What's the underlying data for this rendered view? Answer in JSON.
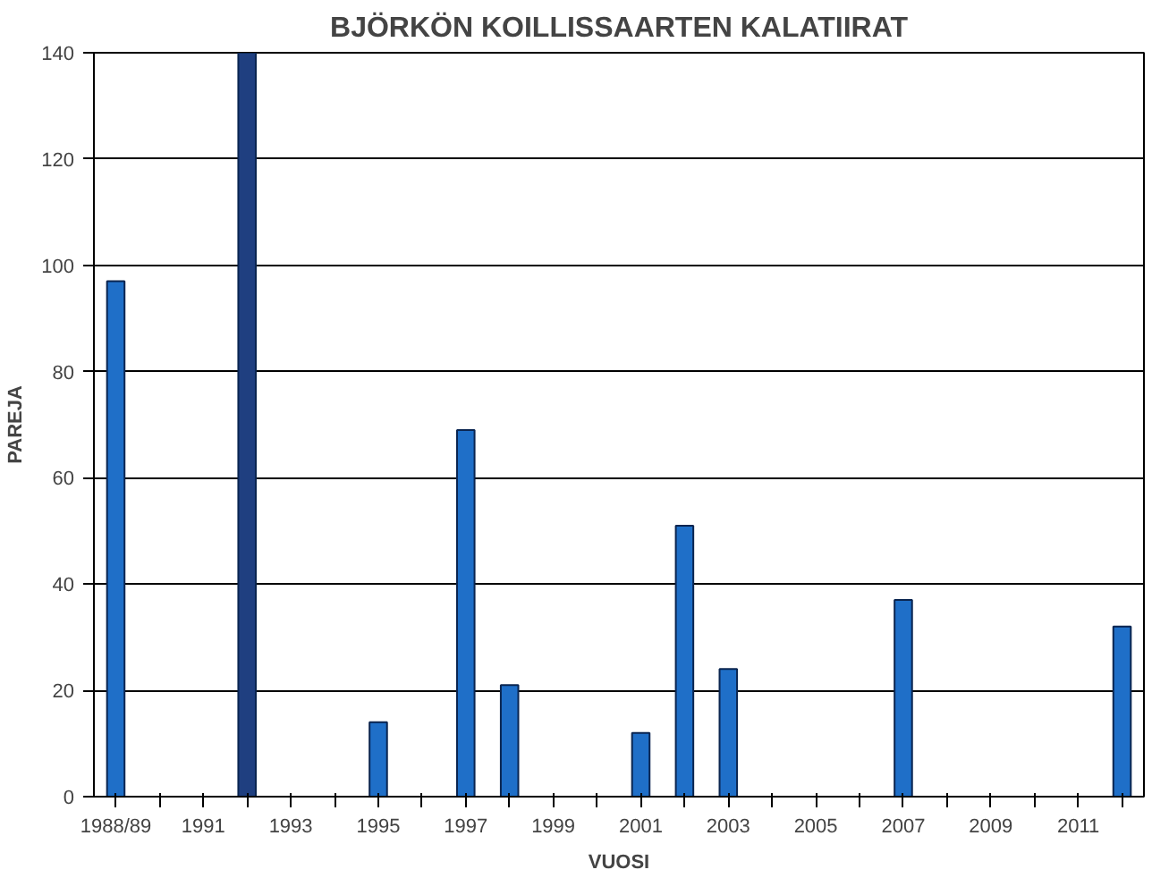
{
  "chart_data": {
    "type": "bar",
    "title": "BJÖRKÖN KOILLISSAARTEN KALATIIRAT",
    "xlabel": "VUOSI",
    "ylabel": "PAREJA",
    "categories": [
      "1988/89",
      null,
      "1991",
      null,
      "1993",
      null,
      "1995",
      null,
      "1997",
      null,
      "1999",
      null,
      "2001",
      null,
      "2003",
      null,
      "2005",
      null,
      "2007",
      null,
      "2009",
      null,
      "2011",
      null
    ],
    "values": [
      97,
      null,
      null,
      140,
      null,
      null,
      14,
      null,
      69,
      21,
      null,
      null,
      12,
      51,
      24,
      null,
      null,
      null,
      37,
      null,
      null,
      null,
      null,
      32
    ],
    "colors": [
      "#1f6fc8",
      "#1f6fc8",
      "#1f6fc8",
      "#1f3f80",
      "#1f6fc8",
      "#1f6fc8",
      "#1f6fc8",
      "#1f6fc8",
      "#1f6fc8",
      "#1f6fc8",
      "#1f6fc8",
      "#1f6fc8",
      "#1f6fc8",
      "#1f6fc8",
      "#1f6fc8",
      "#1f6fc8",
      "#1f6fc8",
      "#1f6fc8",
      "#1f6fc8",
      "#1f6fc8",
      "#1f6fc8",
      "#1f6fc8",
      "#1f6fc8",
      "#1f6fc8"
    ],
    "ylim": [
      0,
      140
    ],
    "yticks": [
      0,
      20,
      40,
      60,
      80,
      100,
      120,
      140
    ],
    "grid": "y"
  }
}
